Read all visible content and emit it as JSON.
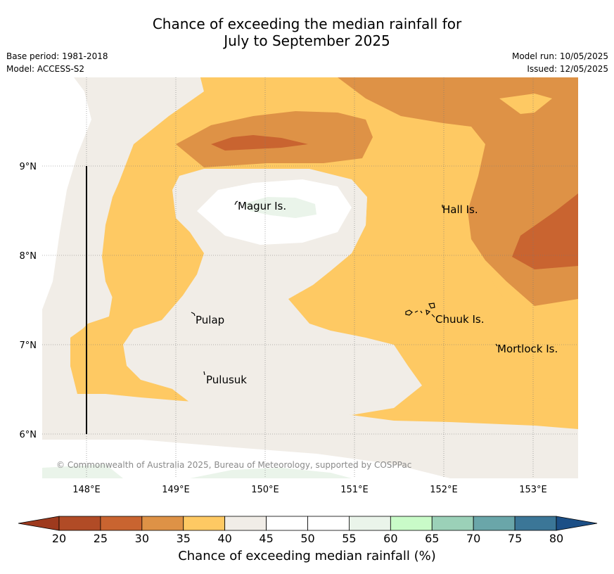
{
  "header": {
    "title_line1": "Chance of exceeding the median rainfall for",
    "title_line2": "July to September 2025",
    "base_period": "Base period: 1981-2018",
    "model": "Model: ACCESS-S2",
    "model_run": "Model run: 10/05/2025",
    "issued": "Issued: 12/05/2025"
  },
  "map": {
    "lon_ticks": [
      "148°E",
      "149°E",
      "150°E",
      "151°E",
      "152°E",
      "153°E"
    ],
    "lat_ticks": [
      "9°N",
      "8°N",
      "7°N",
      "6°N"
    ],
    "places": [
      {
        "name": "Magur Is."
      },
      {
        "name": "Hall Is."
      },
      {
        "name": "Pulap"
      },
      {
        "name": "Chuuk Is."
      },
      {
        "name": "Mortlock Is."
      },
      {
        "name": "Pulusuk"
      }
    ],
    "copyright": "© Commonwealth of Australia 2025, Bureau of Meteorology, supported by COSPPac"
  },
  "colorbar": {
    "label": "Chance of exceeding median rainfall (%)",
    "ticks": [
      "20",
      "25",
      "30",
      "35",
      "40",
      "45",
      "50",
      "55",
      "60",
      "65",
      "70",
      "75",
      "80"
    ],
    "colors": [
      "#b14b26",
      "#c96430",
      "#de9246",
      "#fec963",
      "#f1ede7",
      "#ffffff",
      "#ffffff",
      "#eaf4ea",
      "#c9fbc8",
      "#9bd1b8",
      "#6aa6a9",
      "#3b7697"
    ],
    "under_color": "#9e3a1e",
    "over_color": "#1c4f86"
  }
}
